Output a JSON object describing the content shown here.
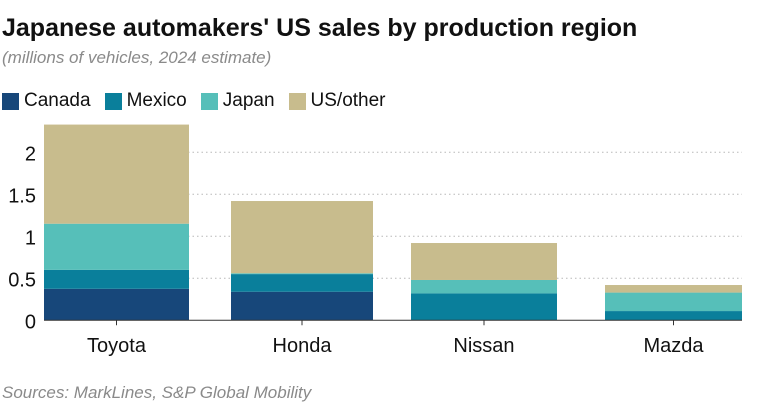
{
  "chart_data": {
    "type": "bar",
    "stacked": true,
    "title": "Japanese automakers' US sales by production region",
    "subtitle": "(millions of vehicles, 2024 estimate)",
    "source": "Sources: MarkLines, S&P Global Mobility",
    "categories": [
      "Toyota",
      "Honda",
      "Nissan",
      "Mazda"
    ],
    "series": [
      {
        "name": "Canada",
        "color": "#17477a",
        "values": [
          0.375,
          0.34,
          0,
          0
        ]
      },
      {
        "name": "Mexico",
        "color": "#0a7f9b",
        "values": [
          0.225,
          0.21,
          0.32,
          0.11
        ]
      },
      {
        "name": "Japan",
        "color": "#56bfb9",
        "values": [
          0.55,
          0.01,
          0.16,
          0.22
        ]
      },
      {
        "name": "US/other",
        "color": "#c8bc8d",
        "values": [
          1.18,
          0.86,
          0.44,
          0.09
        ]
      }
    ],
    "yticks": [
      "0",
      "0.5",
      "1",
      "1.5",
      "2"
    ],
    "ylim": [
      0,
      2.4
    ],
    "grid": true,
    "legend": "top-left"
  }
}
